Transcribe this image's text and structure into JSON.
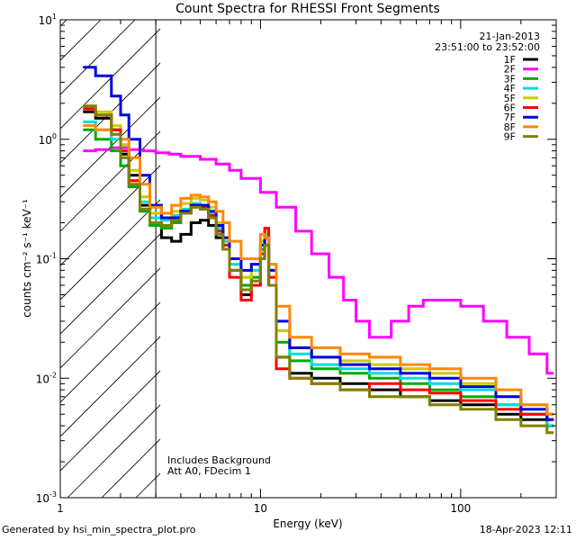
{
  "chart_data": {
    "type": "line",
    "title": "Count Spectra for RHESSI Front Segments",
    "xlabel": "Energy (keV)",
    "ylabel": "counts cm⁻² s⁻¹ keV⁻¹",
    "xscale": "log",
    "yscale": "log",
    "xlim": [
      1,
      300
    ],
    "ylim": [
      0.001,
      10
    ],
    "x_tick_labels": [
      {
        "value": 1,
        "label": "1"
      },
      {
        "value": 10,
        "label": "10"
      },
      {
        "value": 100,
        "label": "100"
      }
    ],
    "y_tick_labels": [
      {
        "value": 10,
        "base": "10",
        "exp": "1"
      },
      {
        "value": 1,
        "base": "10",
        "exp": "0"
      },
      {
        "value": 0.1,
        "base": "10",
        "exp": "-1"
      },
      {
        "value": 0.01,
        "base": "10",
        "exp": "-2"
      },
      {
        "value": 0.001,
        "base": "10",
        "exp": "-3"
      }
    ],
    "date": "21-Jan-2013",
    "time_range": "23:51:00 to 23:52:00",
    "annotation_lines": [
      "Includes Background",
      "Att A0, FDecim 1"
    ],
    "hatched_region_max_kev": 3,
    "legend_position": "top-right",
    "series": [
      {
        "name": "1F",
        "color": "#000000",
        "points": [
          [
            1.3,
            1.7
          ],
          [
            1.5,
            1.5
          ],
          [
            1.8,
            1.2
          ],
          [
            2.0,
            0.75
          ],
          [
            2.2,
            0.5
          ],
          [
            2.5,
            0.28
          ],
          [
            2.8,
            0.19
          ],
          [
            3.2,
            0.15
          ],
          [
            3.6,
            0.14
          ],
          [
            4.0,
            0.16
          ],
          [
            4.5,
            0.2
          ],
          [
            5.0,
            0.21
          ],
          [
            5.5,
            0.19
          ],
          [
            6.0,
            0.15
          ],
          [
            6.5,
            0.12
          ],
          [
            7.0,
            0.08
          ],
          [
            8.0,
            0.05
          ],
          [
            9.0,
            0.06
          ],
          [
            10.0,
            0.1
          ],
          [
            10.5,
            0.13
          ],
          [
            11.0,
            0.06
          ],
          [
            12.0,
            0.015
          ],
          [
            14.0,
            0.011
          ],
          [
            18.0,
            0.01
          ],
          [
            25.0,
            0.009
          ],
          [
            35.0,
            0.008
          ],
          [
            50.0,
            0.007
          ],
          [
            70.0,
            0.0065
          ],
          [
            100.0,
            0.006
          ],
          [
            150.0,
            0.005
          ],
          [
            200.0,
            0.0045
          ],
          [
            270.0,
            0.004
          ]
        ]
      },
      {
        "name": "2F",
        "color": "#ff00ff",
        "points": [
          [
            1.3,
            0.8
          ],
          [
            1.5,
            0.82
          ],
          [
            1.8,
            0.85
          ],
          [
            2.2,
            0.82
          ],
          [
            2.6,
            0.8
          ],
          [
            3.0,
            0.77
          ],
          [
            3.5,
            0.75
          ],
          [
            4.0,
            0.72
          ],
          [
            5.0,
            0.68
          ],
          [
            6.0,
            0.62
          ],
          [
            7.0,
            0.55
          ],
          [
            8.0,
            0.47
          ],
          [
            10.0,
            0.36
          ],
          [
            12.0,
            0.27
          ],
          [
            15.0,
            0.17
          ],
          [
            18.0,
            0.11
          ],
          [
            22.0,
            0.07
          ],
          [
            26.0,
            0.045
          ],
          [
            30.0,
            0.03
          ],
          [
            35.0,
            0.022
          ],
          [
            40.0,
            0.022
          ],
          [
            45.0,
            0.03
          ],
          [
            55.0,
            0.04
          ],
          [
            65.0,
            0.045
          ],
          [
            80.0,
            0.045
          ],
          [
            100.0,
            0.04
          ],
          [
            130.0,
            0.03
          ],
          [
            170.0,
            0.022
          ],
          [
            220.0,
            0.016
          ],
          [
            270.0,
            0.011
          ]
        ]
      },
      {
        "name": "3F",
        "color": "#00aa00",
        "points": [
          [
            1.3,
            1.2
          ],
          [
            1.5,
            1.0
          ],
          [
            1.8,
            0.8
          ],
          [
            2.0,
            0.6
          ],
          [
            2.2,
            0.4
          ],
          [
            2.5,
            0.25
          ],
          [
            2.8,
            0.19
          ],
          [
            3.2,
            0.18
          ],
          [
            3.6,
            0.2
          ],
          [
            4.0,
            0.24
          ],
          [
            4.5,
            0.27
          ],
          [
            5.0,
            0.26
          ],
          [
            5.5,
            0.22
          ],
          [
            6.0,
            0.17
          ],
          [
            6.5,
            0.13
          ],
          [
            7.0,
            0.08
          ],
          [
            8.0,
            0.06
          ],
          [
            9.0,
            0.07
          ],
          [
            10.0,
            0.12
          ],
          [
            10.5,
            0.15
          ],
          [
            11.0,
            0.07
          ],
          [
            12.0,
            0.02
          ],
          [
            14.0,
            0.014
          ],
          [
            18.0,
            0.012
          ],
          [
            25.0,
            0.011
          ],
          [
            35.0,
            0.01
          ],
          [
            50.0,
            0.009
          ],
          [
            70.0,
            0.008
          ],
          [
            100.0,
            0.007
          ],
          [
            150.0,
            0.006
          ],
          [
            200.0,
            0.005
          ],
          [
            270.0,
            0.004
          ]
        ]
      },
      {
        "name": "4F",
        "color": "#00dddd",
        "points": [
          [
            1.3,
            1.4
          ],
          [
            1.5,
            1.2
          ],
          [
            1.8,
            1.0
          ],
          [
            2.0,
            0.7
          ],
          [
            2.2,
            0.45
          ],
          [
            2.5,
            0.3
          ],
          [
            2.8,
            0.22
          ],
          [
            3.2,
            0.21
          ],
          [
            3.6,
            0.23
          ],
          [
            4.0,
            0.26
          ],
          [
            4.5,
            0.29
          ],
          [
            5.0,
            0.28
          ],
          [
            5.5,
            0.24
          ],
          [
            6.0,
            0.18
          ],
          [
            6.5,
            0.14
          ],
          [
            7.0,
            0.09
          ],
          [
            8.0,
            0.07
          ],
          [
            9.0,
            0.08
          ],
          [
            10.0,
            0.13
          ],
          [
            10.5,
            0.16
          ],
          [
            11.0,
            0.08
          ],
          [
            12.0,
            0.025
          ],
          [
            14.0,
            0.016
          ],
          [
            18.0,
            0.013
          ],
          [
            25.0,
            0.012
          ],
          [
            35.0,
            0.011
          ],
          [
            50.0,
            0.01
          ],
          [
            70.0,
            0.009
          ],
          [
            100.0,
            0.008
          ],
          [
            150.0,
            0.006
          ],
          [
            200.0,
            0.005
          ],
          [
            270.0,
            0.004
          ]
        ]
      },
      {
        "name": "5F",
        "color": "#cccc00",
        "points": [
          [
            1.3,
            1.9
          ],
          [
            1.5,
            1.7
          ],
          [
            1.8,
            1.3
          ],
          [
            2.0,
            0.9
          ],
          [
            2.2,
            0.55
          ],
          [
            2.5,
            0.33
          ],
          [
            2.8,
            0.24
          ],
          [
            3.2,
            0.22
          ],
          [
            3.6,
            0.25
          ],
          [
            4.0,
            0.29
          ],
          [
            4.5,
            0.32
          ],
          [
            5.0,
            0.31
          ],
          [
            5.5,
            0.27
          ],
          [
            6.0,
            0.2
          ],
          [
            6.5,
            0.15
          ],
          [
            7.0,
            0.1
          ],
          [
            8.0,
            0.07
          ],
          [
            9.0,
            0.09
          ],
          [
            10.0,
            0.14
          ],
          [
            10.5,
            0.17
          ],
          [
            11.0,
            0.08
          ],
          [
            12.0,
            0.025
          ],
          [
            14.0,
            0.018
          ],
          [
            18.0,
            0.015
          ],
          [
            25.0,
            0.014
          ],
          [
            35.0,
            0.013
          ],
          [
            50.0,
            0.012
          ],
          [
            70.0,
            0.011
          ],
          [
            100.0,
            0.009
          ],
          [
            150.0,
            0.007
          ],
          [
            200.0,
            0.006
          ],
          [
            270.0,
            0.005
          ]
        ]
      },
      {
        "name": "6F",
        "color": "#ff0000",
        "points": [
          [
            1.3,
            1.8
          ],
          [
            1.5,
            1.6
          ],
          [
            1.8,
            1.2
          ],
          [
            2.0,
            0.8
          ],
          [
            2.2,
            0.45
          ],
          [
            2.5,
            0.26
          ],
          [
            2.8,
            0.2
          ],
          [
            3.2,
            0.19
          ],
          [
            3.6,
            0.21
          ],
          [
            4.0,
            0.25
          ],
          [
            4.5,
            0.28
          ],
          [
            5.0,
            0.27
          ],
          [
            5.5,
            0.23
          ],
          [
            6.0,
            0.17
          ],
          [
            6.5,
            0.13
          ],
          [
            7.0,
            0.07
          ],
          [
            8.0,
            0.045
          ],
          [
            9.0,
            0.06
          ],
          [
            10.0,
            0.11
          ],
          [
            10.5,
            0.18
          ],
          [
            11.0,
            0.07
          ],
          [
            12.0,
            0.012
          ],
          [
            14.0,
            0.01
          ],
          [
            18.0,
            0.009
          ],
          [
            25.0,
            0.008
          ],
          [
            35.0,
            0.009
          ],
          [
            50.0,
            0.008
          ],
          [
            70.0,
            0.0075
          ],
          [
            100.0,
            0.0065
          ],
          [
            150.0,
            0.0055
          ],
          [
            200.0,
            0.005
          ],
          [
            270.0,
            0.0045
          ]
        ]
      },
      {
        "name": "7F",
        "color": "#0000dd",
        "points": [
          [
            1.3,
            4.0
          ],
          [
            1.5,
            3.4
          ],
          [
            1.8,
            2.3
          ],
          [
            2.0,
            1.6
          ],
          [
            2.2,
            1.0
          ],
          [
            2.5,
            0.5
          ],
          [
            2.8,
            0.28
          ],
          [
            3.2,
            0.22
          ],
          [
            3.6,
            0.22
          ],
          [
            4.0,
            0.25
          ],
          [
            4.5,
            0.28
          ],
          [
            5.0,
            0.28
          ],
          [
            5.5,
            0.25
          ],
          [
            6.0,
            0.19
          ],
          [
            6.5,
            0.15
          ],
          [
            7.0,
            0.1
          ],
          [
            8.0,
            0.08
          ],
          [
            9.0,
            0.09
          ],
          [
            10.0,
            0.13
          ],
          [
            10.5,
            0.15
          ],
          [
            11.0,
            0.08
          ],
          [
            12.0,
            0.03
          ],
          [
            14.0,
            0.018
          ],
          [
            18.0,
            0.015
          ],
          [
            25.0,
            0.013
          ],
          [
            35.0,
            0.012
          ],
          [
            50.0,
            0.011
          ],
          [
            70.0,
            0.01
          ],
          [
            100.0,
            0.0085
          ],
          [
            150.0,
            0.007
          ],
          [
            200.0,
            0.0055
          ],
          [
            270.0,
            0.0045
          ]
        ]
      },
      {
        "name": "8F",
        "color": "#ff8800",
        "points": [
          [
            1.3,
            1.3
          ],
          [
            1.5,
            1.2
          ],
          [
            1.8,
            1.1
          ],
          [
            2.0,
            1.0
          ],
          [
            2.2,
            0.7
          ],
          [
            2.5,
            0.42
          ],
          [
            2.8,
            0.27
          ],
          [
            3.2,
            0.24
          ],
          [
            3.6,
            0.28
          ],
          [
            4.0,
            0.32
          ],
          [
            4.5,
            0.34
          ],
          [
            5.0,
            0.33
          ],
          [
            5.5,
            0.3
          ],
          [
            6.0,
            0.25
          ],
          [
            6.5,
            0.2
          ],
          [
            7.0,
            0.14
          ],
          [
            8.0,
            0.1
          ],
          [
            9.0,
            0.1
          ],
          [
            10.0,
            0.16
          ],
          [
            10.5,
            0.15
          ],
          [
            11.0,
            0.09
          ],
          [
            12.0,
            0.04
          ],
          [
            14.0,
            0.022
          ],
          [
            18.0,
            0.018
          ],
          [
            25.0,
            0.016
          ],
          [
            35.0,
            0.015
          ],
          [
            50.0,
            0.013
          ],
          [
            70.0,
            0.012
          ],
          [
            100.0,
            0.01
          ],
          [
            150.0,
            0.008
          ],
          [
            200.0,
            0.006
          ],
          [
            270.0,
            0.005
          ]
        ]
      },
      {
        "name": "9F",
        "color": "#808000",
        "points": [
          [
            1.3,
            1.9
          ],
          [
            1.5,
            1.6
          ],
          [
            1.8,
            1.1
          ],
          [
            2.0,
            0.7
          ],
          [
            2.2,
            0.42
          ],
          [
            2.5,
            0.26
          ],
          [
            2.8,
            0.2
          ],
          [
            3.2,
            0.19
          ],
          [
            3.6,
            0.21
          ],
          [
            4.0,
            0.24
          ],
          [
            4.5,
            0.27
          ],
          [
            5.0,
            0.26
          ],
          [
            5.5,
            0.22
          ],
          [
            6.0,
            0.16
          ],
          [
            6.5,
            0.12
          ],
          [
            7.0,
            0.08
          ],
          [
            8.0,
            0.055
          ],
          [
            9.0,
            0.065
          ],
          [
            10.0,
            0.1
          ],
          [
            10.5,
            0.13
          ],
          [
            11.0,
            0.06
          ],
          [
            12.0,
            0.015
          ],
          [
            14.0,
            0.01
          ],
          [
            18.0,
            0.009
          ],
          [
            25.0,
            0.008
          ],
          [
            35.0,
            0.007
          ],
          [
            50.0,
            0.007
          ],
          [
            70.0,
            0.006
          ],
          [
            100.0,
            0.0055
          ],
          [
            150.0,
            0.0045
          ],
          [
            200.0,
            0.004
          ],
          [
            270.0,
            0.0035
          ]
        ]
      }
    ]
  },
  "footer": {
    "generated_by": "Generated by hsi_min_spectra_plot.pro",
    "timestamp": "18-Apr-2023 12:11"
  }
}
